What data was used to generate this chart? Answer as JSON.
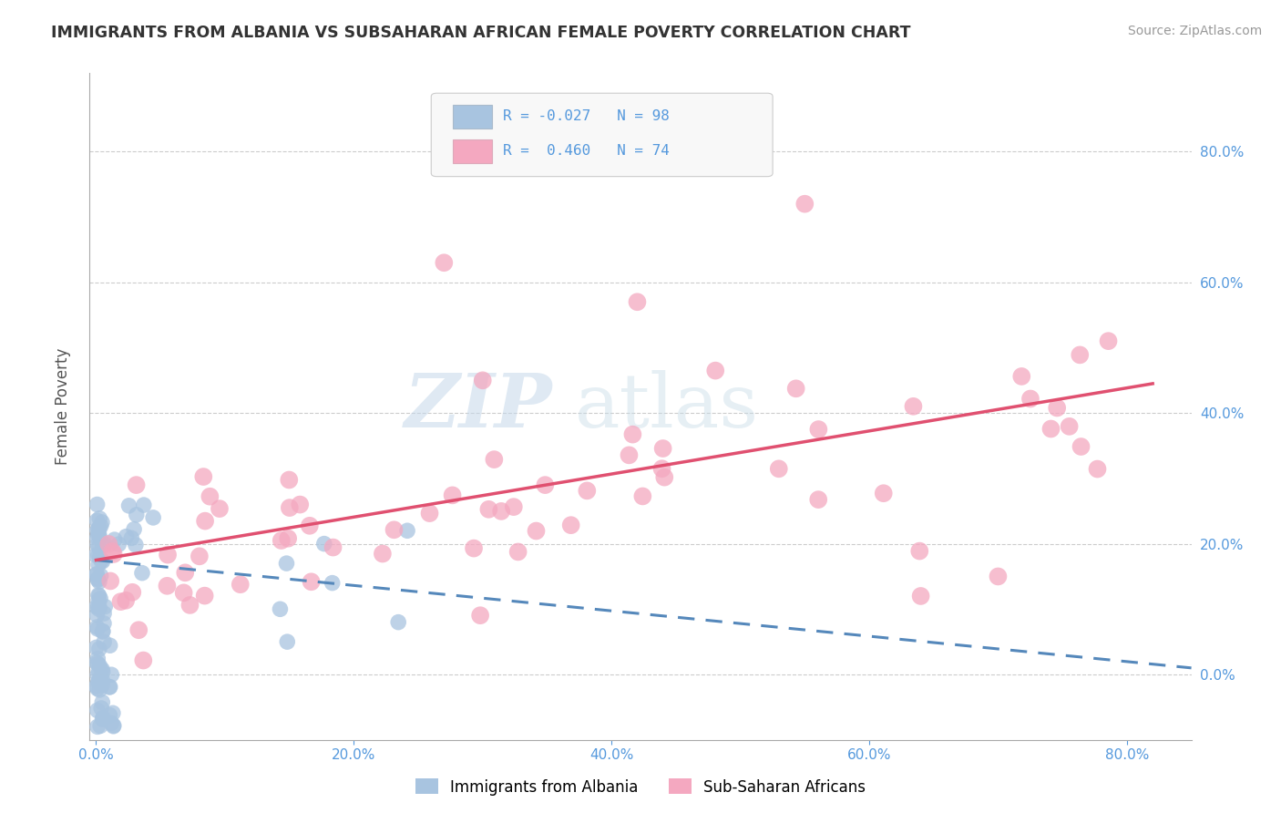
{
  "title": "IMMIGRANTS FROM ALBANIA VS SUBSAHARAN AFRICAN FEMALE POVERTY CORRELATION CHART",
  "source": "Source: ZipAtlas.com",
  "ylabel_label": "Female Poverty",
  "legend1_label": "Immigrants from Albania",
  "legend2_label": "Sub-Saharan Africans",
  "R1": -0.027,
  "N1": 98,
  "R2": 0.46,
  "N2": 74,
  "color1": "#a8c4e0",
  "color2": "#f4a8c0",
  "trendline1_color": "#5588bb",
  "trendline2_color": "#e05070",
  "watermark_zip": "ZIP",
  "watermark_atlas": "atlas",
  "background_color": "#ffffff",
  "grid_color": "#cccccc",
  "tick_color": "#5599dd",
  "xlim": [
    -0.005,
    0.85
  ],
  "ylim": [
    -0.1,
    0.92
  ],
  "x_ticks": [
    0.0,
    0.2,
    0.4,
    0.6,
    0.8
  ],
  "y_ticks": [
    0.0,
    0.2,
    0.4,
    0.6,
    0.8
  ],
  "blue_trendline_start_y": 0.175,
  "blue_trendline_end_y": 0.01,
  "pink_trendline_start_y": 0.175,
  "pink_trendline_end_y": 0.445
}
